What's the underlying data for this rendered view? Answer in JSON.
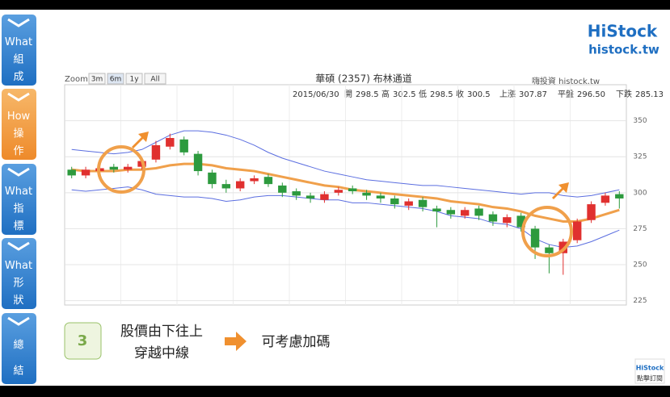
{
  "sidebar": [
    [
      "What",
      "組",
      "成"
    ],
    [
      "How",
      "操",
      "作"
    ],
    [
      "What",
      "指",
      "標"
    ],
    [
      "What",
      "形",
      "狀"
    ],
    [
      "總",
      "結"
    ]
  ],
  "logo": {
    "name": "HiStock",
    "url": "histock.tw"
  },
  "caption": {
    "step": "3",
    "lines": [
      "股價由下往上",
      "穿越中線"
    ],
    "result": "可考慮加碼"
  },
  "subscribe": "點擊訂閱",
  "chart_data": {
    "type": "candlestick",
    "title": "華碩 (2357) 布林通道",
    "source": "嗨投資 histock.tw",
    "zoom": {
      "label": "Zoom",
      "buttons": [
        "3m",
        "6m",
        "1y",
        "All"
      ]
    },
    "info": [
      "2015/06/30",
      "開",
      "298.5",
      "高",
      "302.5",
      "低",
      "298.5",
      "收",
      "300.5",
      "上漲",
      "307.87",
      "平盤",
      "296.50",
      "下跌",
      "285.13"
    ],
    "open": [
      316,
      312,
      315,
      318,
      316,
      318,
      323,
      332,
      337,
      327,
      314,
      306,
      303,
      308,
      311,
      305,
      301,
      298,
      295,
      300,
      303,
      300,
      298,
      296,
      291,
      295,
      289,
      288,
      284,
      289,
      285,
      279,
      284,
      275,
      262,
      258,
      267,
      281,
      293,
      299
    ],
    "high": [
      318,
      318,
      319,
      320,
      320,
      324,
      336,
      341,
      339,
      329,
      316,
      309,
      310,
      312,
      313,
      307,
      303,
      300,
      301,
      304,
      305,
      302,
      300,
      298,
      296,
      297,
      291,
      290,
      290,
      291,
      287,
      285,
      286,
      277,
      264,
      268,
      282,
      294,
      300,
      301
    ],
    "low": [
      310,
      310,
      313,
      314,
      314,
      316,
      321,
      330,
      326,
      312,
      303,
      300,
      301,
      306,
      304,
      297,
      295,
      293,
      293,
      298,
      299,
      295,
      293,
      289,
      288,
      287,
      276,
      282,
      282,
      281,
      277,
      276,
      273,
      254,
      244,
      243,
      265,
      279,
      291,
      289
    ],
    "close": [
      312,
      316,
      317,
      316,
      318,
      322,
      333,
      338,
      328,
      315,
      306,
      303,
      308,
      310,
      306,
      300,
      298,
      296,
      299,
      302,
      301,
      298,
      296,
      292,
      294,
      290,
      287,
      285,
      288,
      284,
      280,
      283,
      276,
      262,
      258,
      266,
      280,
      292,
      298,
      296
    ],
    "up_color": "#e0302f",
    "down_color": "#2d9a3e",
    "bands": [
      {
        "color": "#5b6ee0",
        "values": [
          330,
          329,
          328,
          327,
          328,
          330,
          335,
          340,
          343,
          343,
          342,
          340,
          337,
          333,
          328,
          324,
          321,
          318,
          315,
          313,
          311,
          309,
          308,
          307,
          306,
          305,
          305,
          304,
          303,
          302,
          301,
          300,
          299,
          300,
          300,
          298,
          297,
          298,
          300,
          302
        ]
      },
      {
        "color": "#f0a04b",
        "values": [
          316,
          315,
          315,
          315,
          316,
          316,
          317,
          319,
          320,
          320,
          319,
          317,
          316,
          315,
          313,
          311,
          309,
          307,
          305,
          304,
          302,
          301,
          300,
          299,
          298,
          297,
          296,
          294,
          293,
          292,
          290,
          289,
          287,
          284,
          282,
          280,
          280,
          282,
          285,
          288
        ]
      },
      {
        "color": "#5b6ee0",
        "values": [
          302,
          301,
          302,
          303,
          304,
          302,
          299,
          298,
          297,
          297,
          296,
          294,
          295,
          297,
          298,
          298,
          297,
          296,
          295,
          295,
          293,
          293,
          292,
          291,
          290,
          289,
          287,
          284,
          283,
          282,
          279,
          278,
          275,
          268,
          264,
          262,
          263,
          266,
          270,
          274
        ]
      }
    ],
    "ylim": [
      222,
      375
    ],
    "yticks": [
      225,
      250,
      275,
      300,
      325,
      350
    ],
    "grid": true
  }
}
